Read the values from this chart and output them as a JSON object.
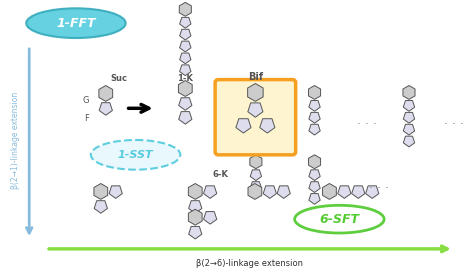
{
  "bg_color": "#ffffff",
  "arrow_color_blue": "#88bbdd",
  "arrow_color_green": "#88dd44",
  "label_1FFT": "1-FFT",
  "label_1SST": "1-SST",
  "label_6SFT": "6-SFT",
  "label_xaxis": "β(2→6)-linkage extension",
  "label_yaxis": "β(2→1)-linkage extension",
  "label_Bif": "Bif",
  "label_Suc": "Suc",
  "label_1K": "1-K",
  "label_6K": "6-K",
  "label_G": "G",
  "label_F": "F",
  "glucose_color": "#cccccc",
  "fructose_color": "#ddddee",
  "bif_box_color": "#f5a020",
  "bif_box_fill": "#fef5d0",
  "ellipse_1FFT_color": "#55ccdd",
  "ellipse_1SST_color": "#55ccdd",
  "ellipse_6SFT_color": "#55cc33",
  "dot_color": "#888888"
}
